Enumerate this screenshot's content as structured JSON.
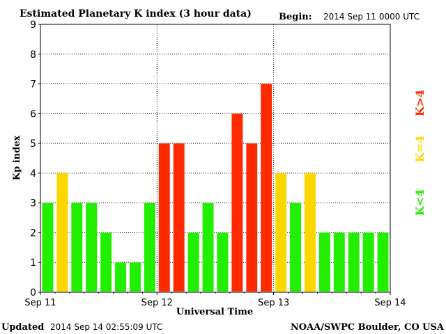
{
  "header": {
    "title": "Estimated Planetary K index (3 hour data)",
    "begin_label": "Begin:",
    "begin_value": "2014 Sep 11 0000 UTC"
  },
  "footer": {
    "updated_label": "Updated",
    "updated_value": "2014 Sep 14 02:55:09 UTC",
    "credit": "NOAA/SWPC Boulder, CO USA"
  },
  "legend": {
    "high": {
      "text": "K>4",
      "color": "#ff2a00"
    },
    "equal": {
      "text": "K=4",
      "color": "#ffd700"
    },
    "low": {
      "text": "K<4",
      "color": "#22ee00"
    }
  },
  "chart_data": {
    "type": "bar",
    "title": "Estimated Planetary K index (3 hour data)",
    "xlabel": "Universal Time",
    "ylabel": "Kp index",
    "ylim": [
      0,
      9
    ],
    "yticks": [
      "0",
      "1",
      "2",
      "3",
      "4",
      "5",
      "6",
      "7",
      "8",
      "9"
    ],
    "xticks": [
      "Sep 11",
      "Sep 12",
      "Sep 13",
      "Sep 14"
    ],
    "grid": true,
    "values": [
      3,
      4,
      3,
      3,
      2,
      1,
      1,
      3,
      5,
      5,
      2,
      3,
      2,
      6,
      5,
      7,
      4,
      3,
      4,
      2,
      2,
      2,
      2,
      2
    ],
    "colors": {
      "below4": "#22ee00",
      "equal4": "#ffd700",
      "above4": "#ff2a00"
    }
  }
}
